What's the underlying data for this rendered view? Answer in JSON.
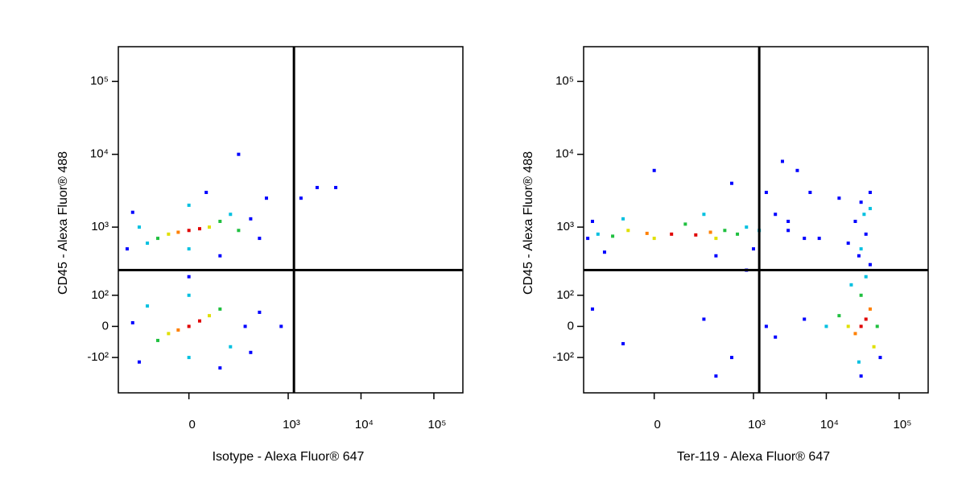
{
  "chart_data": [
    {
      "type": "scatter",
      "scale": "biexponential",
      "x_label": "Isotype - Alexa Fluor® 647",
      "y_label": "CD45 - Alexa Fluor® 488",
      "xlim": [
        -400,
        250000
      ],
      "ylim": [
        -350,
        300000
      ],
      "xticks": [
        0,
        {
          "value": 1000,
          "label": "10³"
        },
        {
          "value": 10000,
          "label": "10⁴"
        },
        {
          "value": 100000,
          "label": "10⁵"
        }
      ],
      "yticks": [
        {
          "value": 100000,
          "label": "10⁵"
        },
        {
          "value": 10000,
          "label": "10⁴"
        },
        {
          "value": 1000,
          "label": "10³"
        },
        {
          "value": 100,
          "label": "10²"
        },
        0,
        {
          "value": -100,
          "label": "-10²"
        }
      ],
      "gate": {
        "x": 1200,
        "y": 250
      },
      "x": [
        0,
        30,
        -30,
        60,
        -60,
        100,
        -100,
        150,
        -150,
        0,
        200,
        -200,
        300,
        -250,
        50,
        400,
        -300,
        0,
        100,
        500,
        2500,
        1500,
        200,
        0,
        30,
        -30,
        60,
        -60,
        100,
        -100,
        150,
        -150,
        0,
        0,
        250,
        -250,
        300,
        -200,
        100,
        400,
        800,
        0,
        4500
      ],
      "y": [
        900,
        950,
        850,
        1000,
        800,
        1200,
        700,
        1500,
        600,
        2000,
        900,
        1000,
        1300,
        1600,
        3000,
        700,
        500,
        500,
        400,
        2500,
        3500,
        2500,
        10000,
        0,
        15,
        -10,
        30,
        -20,
        50,
        -40,
        -60,
        60,
        -100,
        100,
        0,
        10,
        -80,
        -120,
        -150,
        40,
        0,
        200,
        3500
      ],
      "colors": [
        "#e00000",
        "#e00000",
        "#ff8000",
        "#e0e000",
        "#e0e000",
        "#20c040",
        "#20c040",
        "#00c0e0",
        "#00c0e0",
        "#00c0e0",
        "#20c040",
        "#00c0e0",
        "#0000ff",
        "#0000ff",
        "#0000ff",
        "#0000ff",
        "#0000ff",
        "#00c0e0",
        "#0000ff",
        "#0000ff",
        "#0000ff",
        "#0000ff",
        "#0000ff",
        "#e00000",
        "#e00000",
        "#ff8000",
        "#e0e000",
        "#e0e000",
        "#20c040",
        "#20c040",
        "#00c0e0",
        "#00c0e0",
        "#00c0e0",
        "#00c0e0",
        "#0000ff",
        "#0000ff",
        "#0000ff",
        "#0000ff",
        "#0000ff",
        "#0000ff",
        "#0000ff",
        "#0000ff",
        "#0000ff"
      ]
    },
    {
      "type": "scatter",
      "scale": "biexponential",
      "x_label": "Ter-119 - Alexa Fluor® 647",
      "y_label": "CD45 - Alexa Fluor® 488",
      "xlim": [
        -400,
        250000
      ],
      "ylim": [
        -350,
        300000
      ],
      "xticks": [
        0,
        {
          "value": 1000,
          "label": "10³"
        },
        {
          "value": 10000,
          "label": "10⁴"
        },
        {
          "value": 100000,
          "label": "10⁵"
        }
      ],
      "yticks": [
        {
          "value": 100000,
          "label": "10⁵"
        },
        {
          "value": 10000,
          "label": "10⁴"
        },
        {
          "value": 1000,
          "label": "10³"
        },
        {
          "value": 100,
          "label": "10²"
        },
        0,
        {
          "value": -100,
          "label": "-10²"
        }
      ],
      "gate": {
        "x": 1200,
        "y": 250
      },
      "x": [
        50,
        150,
        -20,
        250,
        0,
        300,
        -80,
        400,
        -150,
        100,
        600,
        -250,
        800,
        200,
        -100,
        1200,
        -350,
        -300,
        2000,
        3000,
        1500,
        500,
        0,
        4000,
        2500,
        6000,
        -200,
        300,
        1000,
        5000,
        800,
        -100,
        200,
        500,
        1500,
        -300,
        300,
        30000,
        35000,
        25000,
        40000,
        20000,
        45000,
        30000,
        15000,
        50000,
        28000,
        35000,
        22000,
        10000,
        55000,
        30000,
        5000,
        2000,
        40000,
        30000,
        35000,
        25000,
        40000,
        30000,
        33000,
        28000,
        20000,
        40000,
        15000,
        8000,
        3000
      ],
      "y": [
        800,
        780,
        820,
        850,
        700,
        700,
        900,
        900,
        750,
        1100,
        800,
        800,
        1000,
        1500,
        1300,
        900,
        700,
        1200,
        1500,
        900,
        3000,
        4000,
        6000,
        6000,
        8000,
        3000,
        450,
        400,
        500,
        700,
        250,
        -50,
        20,
        -100,
        0,
        50,
        -200,
        0,
        20,
        -20,
        50,
        0,
        -60,
        100,
        30,
        0,
        -120,
        200,
        150,
        0,
        -100,
        -200,
        20,
        -30,
        300,
        500,
        800,
        1200,
        1800,
        2200,
        1500,
        400,
        600,
        3000,
        2500,
        700,
        1200
      ],
      "colors": [
        "#e00000",
        "#e00000",
        "#ff8000",
        "#ff8000",
        "#e0e000",
        "#e0e000",
        "#e0e000",
        "#20c040",
        "#20c040",
        "#20c040",
        "#20c040",
        "#00c0e0",
        "#00c0e0",
        "#00c0e0",
        "#00c0e0",
        "#00c0e0",
        "#0000ff",
        "#0000ff",
        "#0000ff",
        "#0000ff",
        "#0000ff",
        "#0000ff",
        "#0000ff",
        "#0000ff",
        "#0000ff",
        "#0000ff",
        "#0000ff",
        "#0000ff",
        "#0000ff",
        "#0000ff",
        "#0000ff",
        "#0000ff",
        "#0000ff",
        "#0000ff",
        "#0000ff",
        "#0000ff",
        "#0000ff",
        "#e00000",
        "#e00000",
        "#ff8000",
        "#ff8000",
        "#e0e000",
        "#e0e000",
        "#20c040",
        "#20c040",
        "#20c040",
        "#00c0e0",
        "#00c0e0",
        "#00c0e0",
        "#00c0e0",
        "#0000ff",
        "#0000ff",
        "#0000ff",
        "#0000ff",
        "#0000ff",
        "#00c0e0",
        "#0000ff",
        "#0000ff",
        "#00c0e0",
        "#0000ff",
        "#00c0e0",
        "#0000ff",
        "#0000ff",
        "#0000ff",
        "#0000ff",
        "#0000ff",
        "#0000ff"
      ]
    }
  ]
}
